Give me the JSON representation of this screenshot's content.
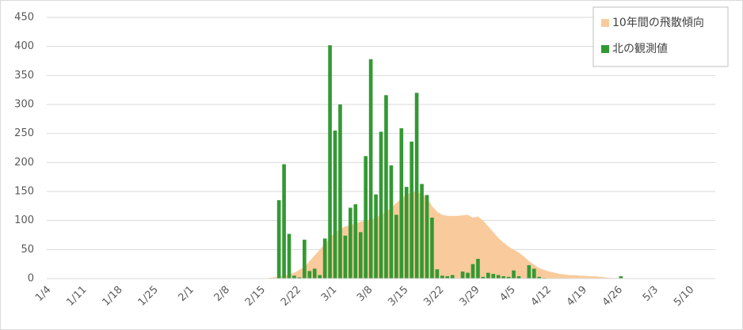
{
  "chart_data": {
    "type": "bar",
    "categories": [
      "1/4",
      null,
      null,
      null,
      null,
      null,
      null,
      "1/11",
      null,
      null,
      null,
      null,
      null,
      null,
      "1/18",
      null,
      null,
      null,
      null,
      null,
      null,
      "1/25",
      null,
      null,
      null,
      null,
      null,
      null,
      "2/1",
      null,
      null,
      null,
      null,
      null,
      null,
      "2/8",
      null,
      null,
      null,
      null,
      null,
      null,
      "2/15",
      null,
      null,
      null,
      null,
      null,
      null,
      "2/22",
      null,
      null,
      null,
      null,
      null,
      null,
      "3/1",
      null,
      null,
      null,
      null,
      null,
      null,
      "3/8",
      null,
      null,
      null,
      null,
      null,
      null,
      "3/15",
      null,
      null,
      null,
      null,
      null,
      null,
      "3/22",
      null,
      null,
      null,
      null,
      null,
      null,
      "3/29",
      null,
      null,
      null,
      null,
      null,
      null,
      "4/5",
      null,
      null,
      null,
      null,
      null,
      null,
      "4/12",
      null,
      null,
      null,
      null,
      null,
      null,
      "4/19",
      null,
      null,
      null,
      null,
      null,
      null,
      "4/26",
      null,
      null,
      null,
      null,
      null,
      null,
      "5/3",
      null,
      null,
      null,
      null,
      null,
      null,
      "5/10",
      null,
      null,
      null,
      null
    ],
    "series": [
      {
        "name": "10年間の飛散傾向",
        "type": "area",
        "color": "#f9cb9c",
        "values": [
          0,
          0,
          0,
          0,
          0,
          0,
          0,
          0,
          0,
          0,
          0,
          0,
          0,
          0,
          0,
          0,
          0,
          0,
          0,
          0,
          0,
          0,
          0,
          0,
          0,
          0,
          0,
          0,
          0,
          0,
          0,
          0,
          0,
          0,
          0,
          0,
          0,
          0,
          0,
          0,
          0,
          0,
          0,
          1,
          2,
          3,
          5,
          7,
          10,
          15,
          20,
          30,
          40,
          50,
          60,
          70,
          80,
          85,
          90,
          92,
          95,
          98,
          100,
          102,
          105,
          110,
          115,
          122,
          130,
          138,
          145,
          148,
          150,
          145,
          140,
          125,
          115,
          110,
          108,
          108,
          108,
          109,
          110,
          105,
          107,
          100,
          90,
          80,
          70,
          62,
          55,
          50,
          45,
          38,
          30,
          24,
          18,
          15,
          12,
          10,
          8,
          7,
          6,
          6,
          5,
          5,
          4,
          4,
          3,
          2,
          1,
          1,
          0,
          0,
          0,
          0,
          0,
          0,
          0,
          0,
          0,
          0,
          0,
          0,
          0,
          0,
          0,
          0,
          0,
          0,
          0
        ]
      },
      {
        "name": "北の観測値",
        "type": "bar",
        "color": "#339933",
        "values": [
          0,
          0,
          0,
          0,
          0,
          0,
          0,
          0,
          0,
          0,
          0,
          0,
          0,
          0,
          0,
          0,
          0,
          0,
          0,
          0,
          0,
          0,
          0,
          0,
          0,
          0,
          0,
          0,
          0,
          0,
          0,
          0,
          0,
          0,
          0,
          0,
          0,
          0,
          0,
          0,
          0,
          0,
          0,
          0,
          0,
          135,
          197,
          77,
          5,
          2,
          67,
          13,
          17,
          6,
          69,
          402,
          255,
          300,
          74,
          122,
          128,
          80,
          211,
          378,
          145,
          253,
          316,
          195,
          110,
          259,
          158,
          236,
          320,
          163,
          144,
          105,
          16,
          5,
          4,
          6,
          0,
          12,
          10,
          25,
          34,
          3,
          10,
          8,
          6,
          4,
          3,
          14,
          4,
          0,
          23,
          17,
          3,
          1,
          0,
          0,
          0,
          0,
          0,
          0,
          0,
          0,
          0,
          0,
          0,
          0,
          0,
          0,
          4,
          0,
          0,
          0,
          0,
          0,
          0,
          0,
          0,
          0,
          0,
          0,
          0,
          0,
          0,
          0,
          0,
          0,
          0
        ]
      }
    ],
    "ylim": [
      0,
      450
    ],
    "yticks": [
      0,
      50,
      100,
      150,
      200,
      250,
      300,
      350,
      400,
      450
    ],
    "grid": true,
    "legend": "top-right"
  }
}
